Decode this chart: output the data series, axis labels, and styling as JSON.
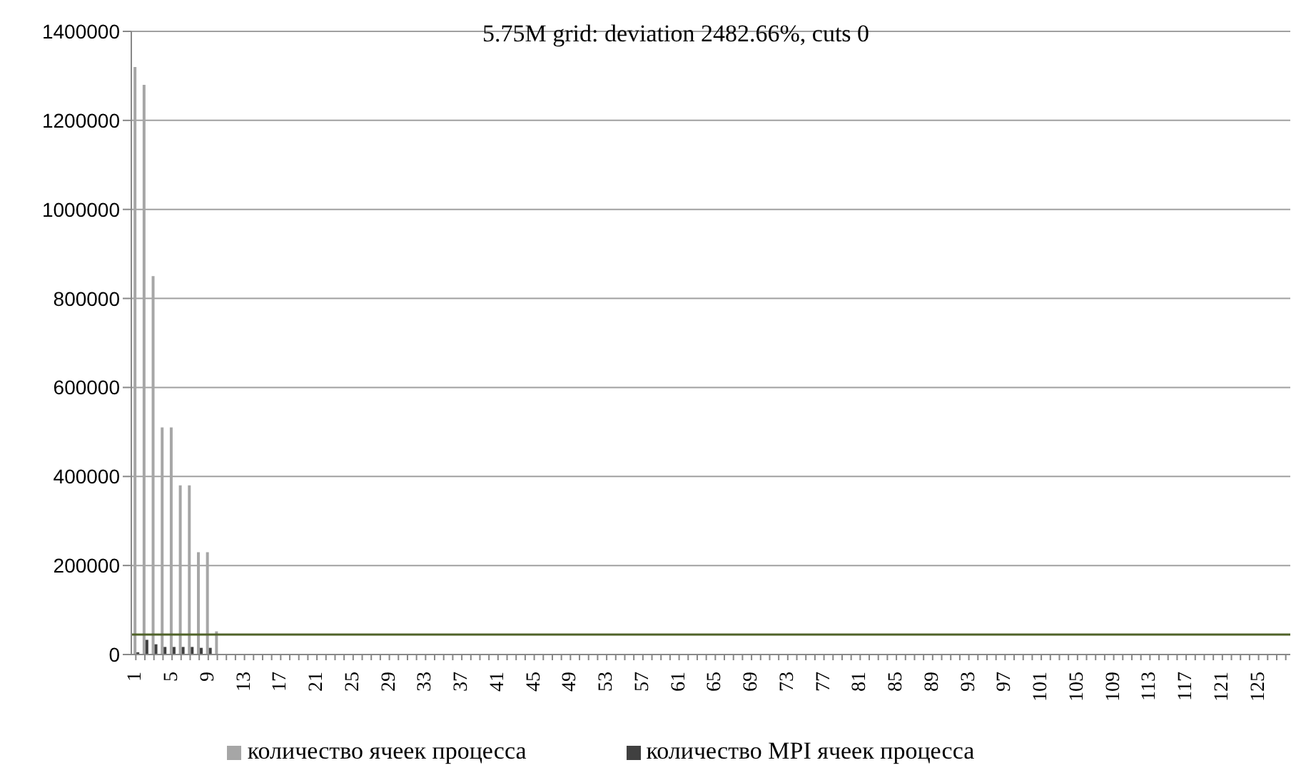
{
  "chart_data": {
    "type": "bar",
    "title": "5.75M grid: deviation 2482.66%, cuts 0",
    "categories": [
      "1",
      null,
      null,
      null,
      "5",
      null,
      null,
      null,
      "9",
      null,
      null,
      null,
      "13",
      null,
      null,
      null,
      "17",
      null,
      null,
      null,
      "21",
      null,
      null,
      null,
      "25",
      null,
      null,
      null,
      "29",
      null,
      null,
      null,
      "33",
      null,
      null,
      null,
      "37",
      null,
      null,
      null,
      "41",
      null,
      null,
      null,
      "45",
      null,
      null,
      null,
      "49",
      null,
      null,
      null,
      "53",
      null,
      null,
      null,
      "57",
      null,
      null,
      null,
      "61",
      null,
      null,
      null,
      "65",
      null,
      null,
      null,
      "69",
      null,
      null,
      null,
      "73",
      null,
      null,
      null,
      "77",
      null,
      null,
      null,
      "81",
      null,
      null,
      null,
      "85",
      null,
      null,
      null,
      "89",
      null,
      null,
      null,
      "93",
      null,
      null,
      null,
      "97",
      null,
      null,
      null,
      "101",
      null,
      null,
      null,
      "105",
      null,
      null,
      null,
      "109",
      null,
      null,
      null,
      "113",
      null,
      null,
      null,
      "117",
      null,
      null,
      null,
      "121",
      null,
      null,
      null,
      "125",
      null,
      null,
      null
    ],
    "series": [
      {
        "name": "количество ячеек процесса",
        "color": "#a6a6a6",
        "values": [
          1320000,
          1280000,
          850000,
          510000,
          510000,
          380000,
          380000,
          230000,
          230000,
          52000,
          null,
          null,
          null,
          0,
          0,
          0,
          0,
          0,
          0,
          0,
          0,
          0,
          0,
          0,
          0,
          0,
          0,
          0,
          0,
          0,
          0,
          0,
          0,
          0,
          0,
          0,
          0,
          0,
          0,
          0,
          0,
          0,
          0,
          0,
          0,
          0,
          0,
          0,
          0,
          0,
          0,
          0,
          0,
          0,
          0,
          0,
          0,
          0,
          0,
          0,
          0,
          0,
          0,
          0,
          0,
          0,
          0,
          0,
          0,
          0,
          0,
          0,
          0,
          0,
          0,
          0,
          0,
          0,
          0,
          0,
          0,
          0,
          0,
          0,
          0,
          0,
          0,
          0,
          0,
          0,
          0,
          0,
          0,
          0,
          0,
          0,
          0,
          0,
          0,
          0,
          0,
          0,
          0,
          0,
          0,
          0,
          0,
          0,
          0,
          0,
          0,
          0,
          0,
          0,
          0,
          0,
          0,
          0,
          0,
          0,
          0,
          0,
          0,
          0,
          0,
          0,
          0,
          0
        ]
      },
      {
        "name": "количество MPI ячеек процесса",
        "color": "#404040",
        "values": [
          5000,
          33000,
          23000,
          17000,
          17000,
          17000,
          17000,
          15000,
          15000,
          0,
          0,
          0,
          0,
          0,
          0,
          0,
          0,
          0,
          0,
          0,
          0,
          0,
          0,
          0,
          0,
          0,
          0,
          0,
          0,
          0,
          0,
          0,
          0,
          0,
          0,
          0,
          0,
          0,
          0,
          0,
          0,
          0,
          0,
          0,
          0,
          0,
          0,
          0,
          0,
          0,
          0,
          0,
          0,
          0,
          0,
          0,
          0,
          0,
          0,
          0,
          0,
          0,
          0,
          0,
          0,
          0,
          0,
          0,
          0,
          0,
          0,
          0,
          0,
          0,
          0,
          0,
          0,
          0,
          0,
          0,
          0,
          0,
          0,
          0,
          0,
          0,
          0,
          0,
          0,
          0,
          0,
          0,
          0,
          0,
          0,
          0,
          0,
          0,
          0,
          0,
          0,
          0,
          0,
          0,
          0,
          0,
          0,
          0,
          0,
          0,
          0,
          0,
          0,
          0,
          0,
          0,
          0,
          0,
          0,
          0,
          0,
          0,
          0,
          0,
          0,
          0,
          0,
          0
        ]
      }
    ],
    "ylim": [
      0,
      1400000
    ],
    "yticks": [
      0,
      200000,
      400000,
      600000,
      800000,
      1000000,
      1200000,
      1400000
    ],
    "grid": "y",
    "legend": "bottom",
    "ref_lines": [
      {
        "axis": "y",
        "value": 45000,
        "color": "#4f6228"
      }
    ]
  }
}
